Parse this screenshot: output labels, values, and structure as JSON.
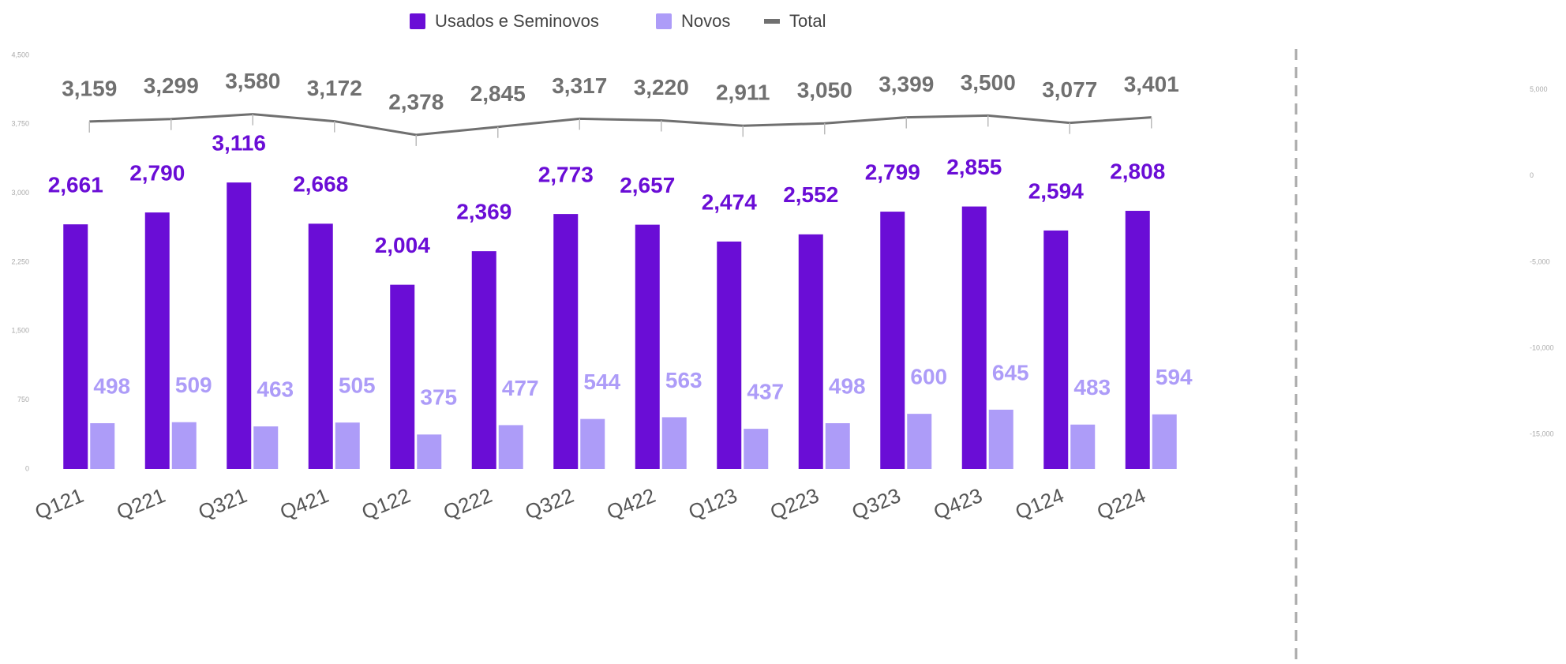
{
  "chart_data": {
    "type": "bar",
    "categories": [
      "Q121",
      "Q221",
      "Q321",
      "Q421",
      "Q122",
      "Q222",
      "Q322",
      "Q422",
      "Q123",
      "Q223",
      "Q323",
      "Q423",
      "Q124",
      "Q224"
    ],
    "series": [
      {
        "name": "Usados e Seminovos",
        "color": "#6a0dd6",
        "values": [
          2661,
          2790,
          3116,
          2668,
          2004,
          2369,
          2773,
          2657,
          2474,
          2552,
          2799,
          2855,
          2594,
          2808
        ],
        "value_labels": [
          "2,661",
          "2,790",
          "3,116",
          "2,668",
          "2,004",
          "2,369",
          "2,773",
          "2,657",
          "2,474",
          "2,552",
          "2,799",
          "2,855",
          "2,594",
          "2,808"
        ]
      },
      {
        "name": "Novos",
        "color": "#ad9cf8",
        "values": [
          498,
          509,
          463,
          505,
          375,
          477,
          544,
          563,
          437,
          498,
          600,
          645,
          483,
          594
        ]
      },
      {
        "name": "Total",
        "color": "#707070",
        "type": "line",
        "axis": "y2",
        "values": [
          3159,
          3299,
          3580,
          3172,
          2378,
          2845,
          3317,
          3220,
          2911,
          3050,
          3399,
          3500,
          3077,
          3401
        ],
        "value_labels": [
          "3,159",
          "3,299",
          "3,580",
          "3,172",
          "2,378",
          "2,845",
          "3,317",
          "3,220",
          "2,911",
          "3,050",
          "3,399",
          "3,500",
          "3,077",
          "3,401"
        ]
      }
    ],
    "ylim": [
      0,
      4500
    ],
    "yticks": [
      0,
      750,
      {
        "value": 1500,
        "label": "1,500"
      },
      {
        "value": 2250,
        "label": "2,250"
      },
      {
        "value": 3000,
        "label": "3,000"
      },
      {
        "value": 3750,
        "label": "3,750"
      },
      {
        "value": 4500,
        "label": "4,500"
      }
    ],
    "y2lim": [
      -17000,
      7000
    ],
    "y2ticks": [
      {
        "value": -15000,
        "label": "-15,000"
      },
      {
        "value": -10000,
        "label": "-10,000"
      },
      {
        "value": -5000,
        "label": "-5,000"
      },
      0,
      {
        "value": 5000,
        "label": "5,000"
      }
    ],
    "legend": "top"
  }
}
